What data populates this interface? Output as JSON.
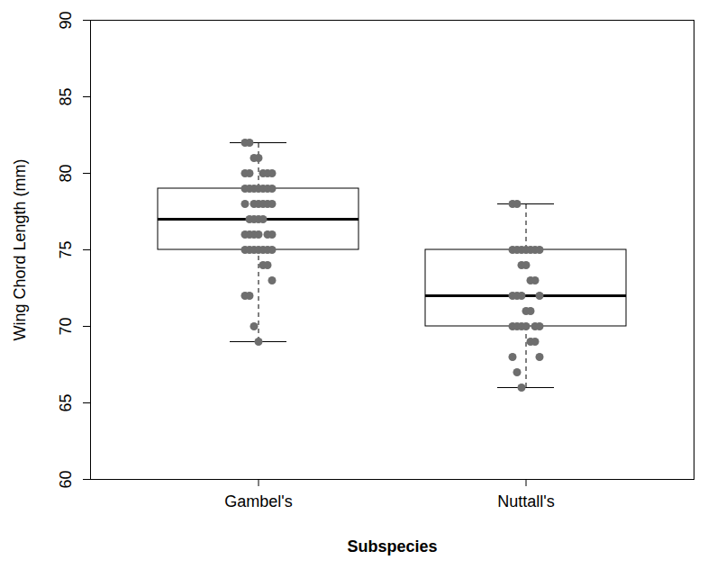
{
  "chart_data": {
    "type": "box",
    "x_label": "Subspecies",
    "y_label": "Wing Chord Length (mm)",
    "categories": [
      "Gambel's",
      "Nuttall's"
    ],
    "color": "#6e6e6e",
    "ylim": [
      60,
      90
    ],
    "yticks": [
      60,
      65,
      70,
      75,
      80,
      85,
      90
    ],
    "groups": [
      {
        "name": "Gambel's",
        "whisker_low": 69,
        "q1": 75,
        "median": 77,
        "q3": 79,
        "whisker_high": 82,
        "values": [
          82,
          82,
          81,
          81,
          80,
          80,
          80,
          80,
          80,
          79,
          79,
          79,
          79,
          79,
          79,
          79,
          78,
          78,
          78,
          78,
          78,
          78,
          77,
          77,
          77,
          77,
          76,
          76,
          76,
          76,
          76,
          76,
          75,
          75,
          75,
          75,
          75,
          75,
          75,
          74,
          74,
          73,
          72,
          72,
          70,
          69
        ]
      },
      {
        "name": "Nuttall's",
        "whisker_low": 66,
        "q1": 70,
        "median": 72,
        "q3": 75,
        "whisker_high": 78,
        "values": [
          78,
          78,
          75,
          75,
          75,
          75,
          75,
          75,
          75,
          74,
          74,
          73,
          73,
          72,
          72,
          72,
          72,
          71,
          71,
          70,
          70,
          70,
          70,
          70,
          70,
          69,
          69,
          68,
          68,
          67,
          66
        ]
      }
    ]
  }
}
